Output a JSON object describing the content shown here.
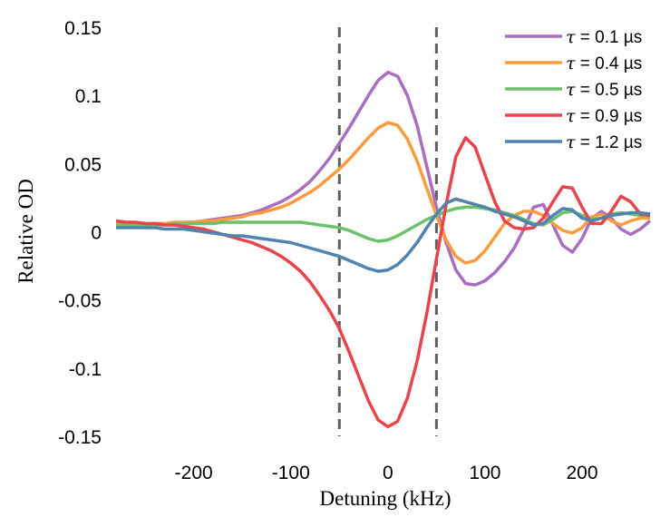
{
  "chart_data": {
    "type": "line",
    "xlabel": "Detuning (kHz)",
    "ylabel": "Relative OD",
    "xlim": [
      -280,
      270
    ],
    "ylim": [
      -0.15,
      0.15
    ],
    "xticks": [
      -200,
      -100,
      0,
      100,
      200
    ],
    "xtick_labels": [
      "-200",
      "-100",
      "0",
      "100",
      "200"
    ],
    "yticks": [
      0.15,
      0.1,
      0.05,
      0,
      -0.05,
      -0.1,
      -0.15
    ],
    "ytick_labels": [
      "0.15",
      "0.1",
      "0.05",
      "0",
      "-0.05",
      "-0.1",
      "-0.15"
    ],
    "grid": false,
    "legend_position": "top-right",
    "vertical_dashed_lines": [
      -50,
      50
    ],
    "dashed_line_color": "#606060",
    "x": [
      -280,
      -270,
      -260,
      -250,
      -240,
      -230,
      -220,
      -210,
      -200,
      -190,
      -180,
      -170,
      -160,
      -150,
      -140,
      -130,
      -120,
      -110,
      -100,
      -90,
      -80,
      -70,
      -60,
      -50,
      -40,
      -30,
      -20,
      -10,
      0,
      10,
      20,
      30,
      40,
      50,
      60,
      70,
      80,
      90,
      100,
      110,
      120,
      130,
      140,
      150,
      160,
      170,
      180,
      190,
      200,
      210,
      220,
      230,
      240,
      250,
      260,
      270
    ],
    "series": [
      {
        "name": "τ = 0.1 µs",
        "symbol": "τ",
        "label": "= 0.1 µs",
        "color": "#a86fc0",
        "values": [
          0.005,
          0.005,
          0.005,
          0.005,
          0.006,
          0.006,
          0.006,
          0.007,
          0.007,
          0.008,
          0.009,
          0.01,
          0.011,
          0.012,
          0.014,
          0.016,
          0.019,
          0.022,
          0.026,
          0.031,
          0.037,
          0.045,
          0.054,
          0.065,
          0.076,
          0.088,
          0.1,
          0.111,
          0.117,
          0.114,
          0.1,
          0.078,
          0.048,
          0.018,
          -0.008,
          -0.028,
          -0.038,
          -0.039,
          -0.036,
          -0.03,
          -0.022,
          -0.012,
          0.002,
          0.018,
          0.02,
          0.005,
          -0.01,
          -0.015,
          -0.005,
          0.01,
          0.015,
          0.01,
          0.002,
          -0.002,
          0.002,
          0.008
        ]
      },
      {
        "name": "τ = 0.4 µs",
        "symbol": "τ",
        "label": "= 0.4 µs",
        "color": "#ff9b3c",
        "values": [
          0.006,
          0.006,
          0.006,
          0.006,
          0.006,
          0.006,
          0.007,
          0.007,
          0.007,
          0.008,
          0.008,
          0.009,
          0.01,
          0.011,
          0.013,
          0.014,
          0.016,
          0.018,
          0.021,
          0.025,
          0.029,
          0.034,
          0.04,
          0.046,
          0.053,
          0.061,
          0.069,
          0.076,
          0.08,
          0.078,
          0.068,
          0.052,
          0.032,
          0.012,
          -0.006,
          -0.018,
          -0.023,
          -0.021,
          -0.014,
          -0.004,
          0.006,
          0.012,
          0.015,
          0.015,
          0.012,
          0.006,
          0.001,
          -0.001,
          0.003,
          0.011,
          0.013,
          0.008,
          0.005,
          0.008,
          0.01,
          0.01
        ]
      },
      {
        "name": "τ = 0.5 µs",
        "symbol": "τ",
        "label": "= 0.5 µs",
        "color": "#6cc16a",
        "values": [
          0.005,
          0.005,
          0.005,
          0.005,
          0.005,
          0.005,
          0.006,
          0.006,
          0.006,
          0.006,
          0.006,
          0.007,
          0.007,
          0.007,
          0.007,
          0.007,
          0.007,
          0.007,
          0.007,
          0.007,
          0.006,
          0.005,
          0.004,
          0.003,
          0.001,
          -0.002,
          -0.005,
          -0.007,
          -0.006,
          -0.003,
          0.001,
          0.005,
          0.009,
          0.012,
          0.015,
          0.017,
          0.018,
          0.018,
          0.017,
          0.016,
          0.014,
          0.012,
          0.009,
          0.006,
          0.005,
          0.009,
          0.014,
          0.015,
          0.012,
          0.009,
          0.01,
          0.013,
          0.014,
          0.013,
          0.012,
          0.012
        ]
      },
      {
        "name": "τ = 0.9 µs",
        "symbol": "τ",
        "label": "= 0.9 µs",
        "color": "#e8444b",
        "values": [
          0.008,
          0.007,
          0.007,
          0.006,
          0.006,
          0.005,
          0.005,
          0.004,
          0.003,
          0.002,
          0.0,
          -0.002,
          -0.004,
          -0.006,
          -0.008,
          -0.011,
          -0.014,
          -0.018,
          -0.023,
          -0.029,
          -0.037,
          -0.047,
          -0.058,
          -0.071,
          -0.088,
          -0.106,
          -0.124,
          -0.138,
          -0.143,
          -0.139,
          -0.122,
          -0.095,
          -0.06,
          -0.02,
          0.02,
          0.055,
          0.069,
          0.062,
          0.042,
          0.022,
          0.008,
          0.003,
          0.002,
          0.003,
          0.01,
          0.022,
          0.033,
          0.032,
          0.018,
          0.006,
          0.006,
          0.015,
          0.026,
          0.022,
          0.013,
          0.012
        ]
      },
      {
        "name": "τ = 1.2 µs",
        "symbol": "τ",
        "label": "= 1.2 µs",
        "color": "#5083b0",
        "values": [
          0.003,
          0.003,
          0.003,
          0.003,
          0.003,
          0.002,
          0.002,
          0.002,
          0.001,
          0.0,
          -0.001,
          -0.002,
          -0.003,
          -0.003,
          -0.004,
          -0.005,
          -0.006,
          -0.007,
          -0.008,
          -0.01,
          -0.012,
          -0.014,
          -0.016,
          -0.018,
          -0.021,
          -0.024,
          -0.027,
          -0.029,
          -0.028,
          -0.024,
          -0.017,
          -0.008,
          0.003,
          0.013,
          0.021,
          0.024,
          0.022,
          0.02,
          0.018,
          0.015,
          0.013,
          0.011,
          0.008,
          0.005,
          0.006,
          0.012,
          0.017,
          0.016,
          0.01,
          0.008,
          0.01,
          0.012,
          0.013,
          0.014,
          0.014,
          0.013
        ]
      }
    ]
  }
}
